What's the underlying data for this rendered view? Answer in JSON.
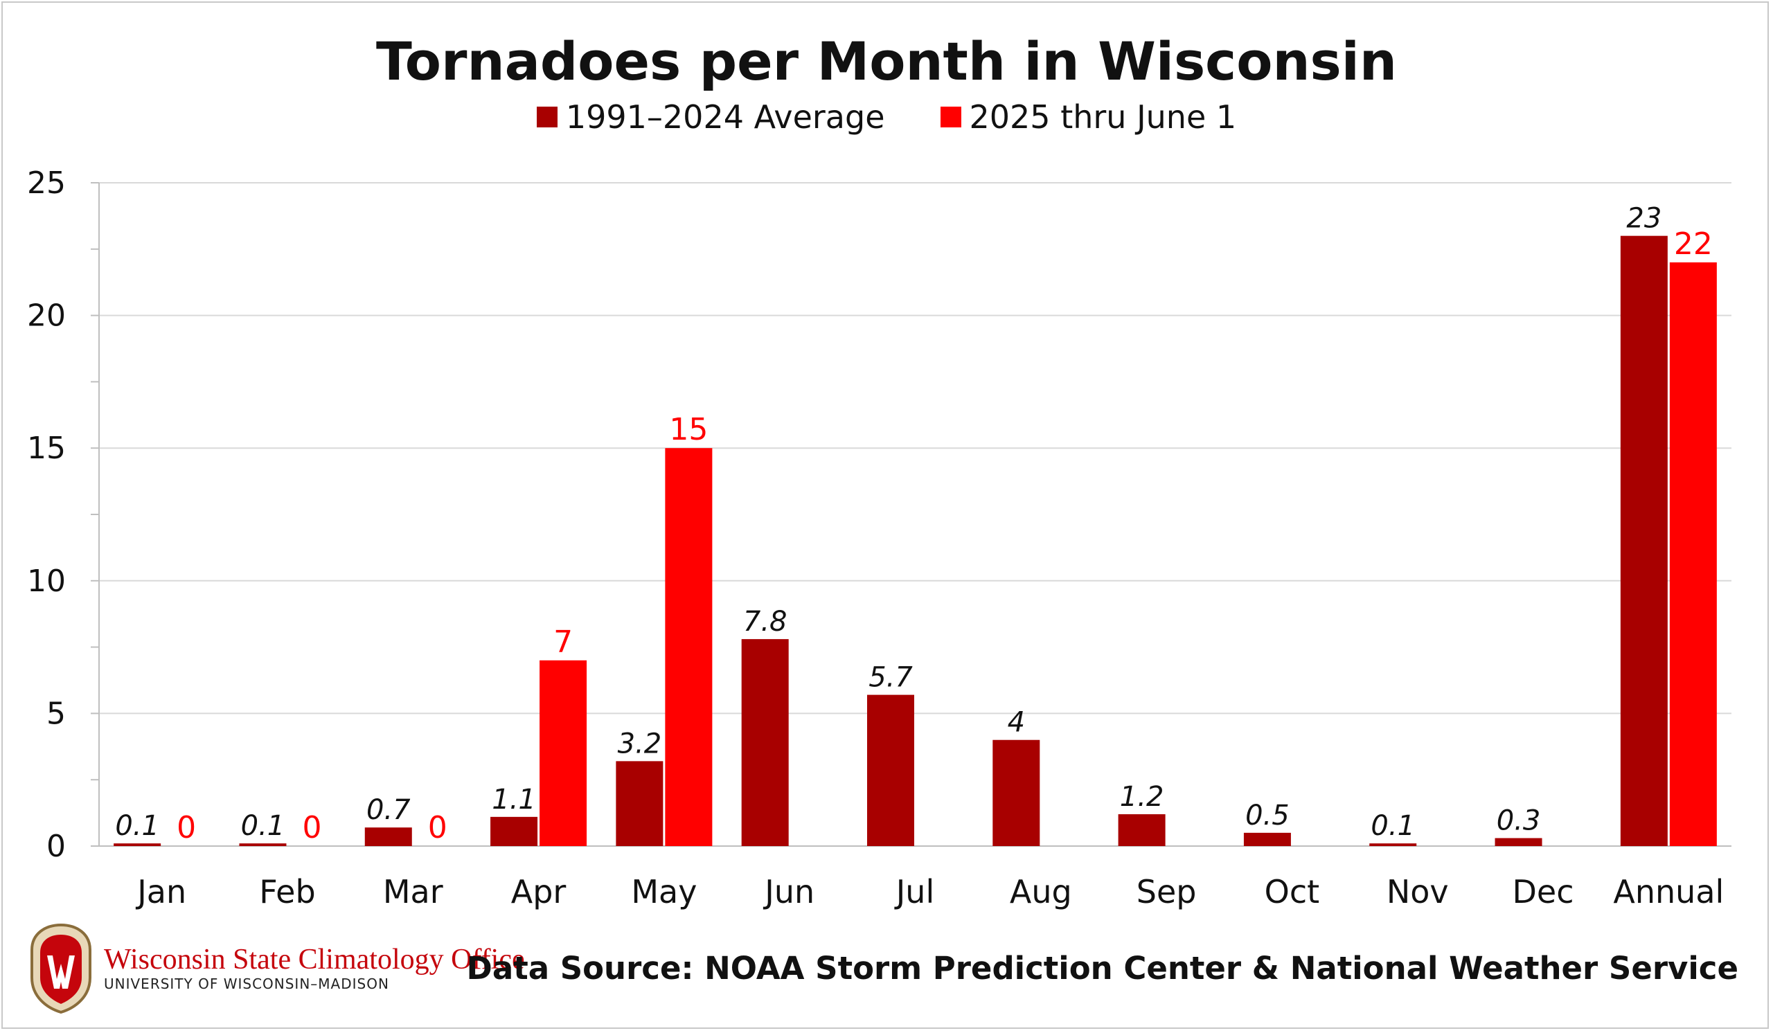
{
  "colors": {
    "average": "#a80000",
    "current": "#ff0000",
    "grid": "#d9d9d9",
    "axis": "#bfbfbf"
  },
  "chart_data": {
    "type": "bar",
    "title": "Tornadoes per Month in Wisconsin",
    "categories": [
      "Jan",
      "Feb",
      "Mar",
      "Apr",
      "May",
      "Jun",
      "Jul",
      "Aug",
      "Sep",
      "Oct",
      "Nov",
      "Dec",
      "Annual"
    ],
    "series": [
      {
        "name": "1991–2024 Average",
        "values": [
          0.1,
          0.1,
          0.7,
          1.1,
          3.2,
          7.8,
          5.7,
          4,
          1.2,
          0.5,
          0.1,
          0.3,
          23
        ],
        "labels": [
          "0.1",
          "0.1",
          "0.7",
          "1.1",
          "3.2",
          "7.8",
          "5.7",
          "4",
          "1.2",
          "0.5",
          "0.1",
          "0.3",
          "23"
        ]
      },
      {
        "name": "2025 thru June 1",
        "values": [
          0,
          0,
          0,
          7,
          15,
          null,
          null,
          null,
          null,
          null,
          null,
          null,
          22
        ],
        "labels": [
          "0",
          "0",
          "0",
          "7",
          "15",
          "",
          "",
          "",
          "",
          "",
          "",
          "",
          "22"
        ]
      }
    ],
    "ylim": [
      0,
      25
    ],
    "yticks": [
      0,
      5,
      10,
      15,
      20,
      25
    ],
    "grid": true,
    "legend_position": "top-center"
  },
  "footer": {
    "source": "Data Source: NOAA Storm Prediction Center & National Weather Service",
    "org_name": "Wisconsin State Climatology Office",
    "org_sub": "UNIVERSITY OF WISCONSIN–MADISON"
  }
}
